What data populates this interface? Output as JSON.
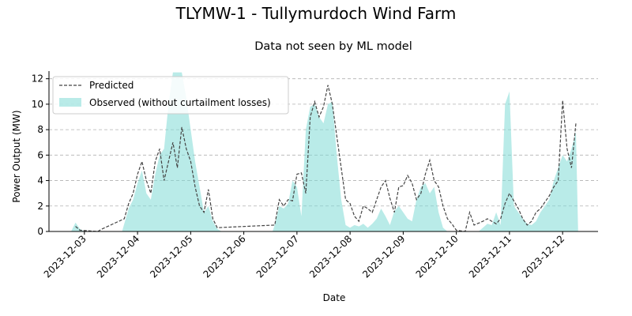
{
  "figure": {
    "suptitle": "TLYMW-1 - Tullymurdoch Wind Farm"
  },
  "chart_data": {
    "type": "area",
    "title": "Data not seen by ML model",
    "xlabel": "Date",
    "ylabel": "Power Output (MW)",
    "ylim": [
      0,
      12.6
    ],
    "xlim": [
      "2023-12-02 08:00",
      "2023-12-12 16:00"
    ],
    "yticks": [
      0,
      2,
      4,
      6,
      8,
      10,
      12
    ],
    "xticks": [
      "2023-12-03",
      "2023-12-04",
      "2023-12-05",
      "2023-12-06",
      "2023-12-07",
      "2023-12-08",
      "2023-12-09",
      "2023-12-10",
      "2023-12-11",
      "2023-12-12"
    ],
    "grid": "y-dashed",
    "legend_position": "upper-left",
    "series": [
      {
        "name": "Predicted",
        "style": "dashed-line",
        "color": "#444444",
        "points": [
          [
            "2023-12-02 20:00",
            0.4
          ],
          [
            "2023-12-02 22:00",
            0.1
          ],
          [
            "2023-12-03 06:00",
            0.0
          ],
          [
            "2023-12-03 08:00",
            0.2
          ],
          [
            "2023-12-03 18:00",
            1.0
          ],
          [
            "2023-12-03 20:00",
            2.2
          ],
          [
            "2023-12-03 22:00",
            3.0
          ],
          [
            "2023-12-04 00:00",
            4.5
          ],
          [
            "2023-12-04 02:00",
            5.5
          ],
          [
            "2023-12-04 04:00",
            4.0
          ],
          [
            "2023-12-04 06:00",
            3.0
          ],
          [
            "2023-12-04 08:00",
            5.5
          ],
          [
            "2023-12-04 10:00",
            6.5
          ],
          [
            "2023-12-04 12:00",
            4.0
          ],
          [
            "2023-12-04 14:00",
            5.5
          ],
          [
            "2023-12-04 16:00",
            7.0
          ],
          [
            "2023-12-04 18:00",
            5.0
          ],
          [
            "2023-12-04 20:00",
            8.2
          ],
          [
            "2023-12-04 22:00",
            6.5
          ],
          [
            "2023-12-05 00:00",
            5.5
          ],
          [
            "2023-12-05 02:00",
            3.5
          ],
          [
            "2023-12-05 04:00",
            2.0
          ],
          [
            "2023-12-05 06:00",
            1.5
          ],
          [
            "2023-12-05 08:00",
            3.3
          ],
          [
            "2023-12-05 10:00",
            1.0
          ],
          [
            "2023-12-05 12:00",
            0.3
          ],
          [
            "2023-12-06 14:00",
            0.5
          ],
          [
            "2023-12-06 16:00",
            2.5
          ],
          [
            "2023-12-06 18:00",
            2.0
          ],
          [
            "2023-12-06 20:00",
            2.5
          ],
          [
            "2023-12-06 22:00",
            2.4
          ],
          [
            "2023-12-07 00:00",
            4.5
          ],
          [
            "2023-12-07 02:00",
            4.6
          ],
          [
            "2023-12-07 04:00",
            3.0
          ],
          [
            "2023-12-07 06:00",
            9.0
          ],
          [
            "2023-12-07 08:00",
            10.2
          ],
          [
            "2023-12-07 10:00",
            9.0
          ],
          [
            "2023-12-07 12:00",
            9.8
          ],
          [
            "2023-12-07 14:00",
            11.5
          ],
          [
            "2023-12-07 16:00",
            10.0
          ],
          [
            "2023-12-07 18:00",
            7.5
          ],
          [
            "2023-12-07 20:00",
            5.0
          ],
          [
            "2023-12-07 22:00",
            2.5
          ],
          [
            "2023-12-08 00:00",
            2.2
          ],
          [
            "2023-12-08 02:00",
            1.2
          ],
          [
            "2023-12-08 04:00",
            0.8
          ],
          [
            "2023-12-08 06:00",
            2.0
          ],
          [
            "2023-12-08 08:00",
            1.8
          ],
          [
            "2023-12-08 10:00",
            1.5
          ],
          [
            "2023-12-08 12:00",
            2.5
          ],
          [
            "2023-12-08 14:00",
            3.5
          ],
          [
            "2023-12-08 16:00",
            4.0
          ],
          [
            "2023-12-08 18:00",
            2.6
          ],
          [
            "2023-12-08 20:00",
            1.5
          ],
          [
            "2023-12-08 22:00",
            3.5
          ],
          [
            "2023-12-09 00:00",
            3.6
          ],
          [
            "2023-12-09 02:00",
            4.4
          ],
          [
            "2023-12-09 04:00",
            3.8
          ],
          [
            "2023-12-09 06:00",
            2.5
          ],
          [
            "2023-12-09 08:00",
            3.0
          ],
          [
            "2023-12-09 10:00",
            4.5
          ],
          [
            "2023-12-09 12:00",
            5.6
          ],
          [
            "2023-12-09 14:00",
            4.0
          ],
          [
            "2023-12-09 16:00",
            3.5
          ],
          [
            "2023-12-09 18:00",
            2.0
          ],
          [
            "2023-12-09 20:00",
            1.0
          ],
          [
            "2023-12-09 22:00",
            0.6
          ],
          [
            "2023-12-10 00:00",
            0.1
          ],
          [
            "2023-12-10 04:00",
            0.0
          ],
          [
            "2023-12-10 06:00",
            1.5
          ],
          [
            "2023-12-10 08:00",
            0.5
          ],
          [
            "2023-12-10 12:00",
            0.8
          ],
          [
            "2023-12-10 14:00",
            1.0
          ],
          [
            "2023-12-10 16:00",
            0.8
          ],
          [
            "2023-12-10 18:00",
            0.6
          ],
          [
            "2023-12-10 20:00",
            1.0
          ],
          [
            "2023-12-10 22:00",
            2.2
          ],
          [
            "2023-12-11 00:00",
            3.0
          ],
          [
            "2023-12-11 02:00",
            2.4
          ],
          [
            "2023-12-11 04:00",
            1.8
          ],
          [
            "2023-12-11 06:00",
            1.0
          ],
          [
            "2023-12-11 08:00",
            0.5
          ],
          [
            "2023-12-11 10:00",
            0.8
          ],
          [
            "2023-12-11 12:00",
            1.5
          ],
          [
            "2023-12-11 14:00",
            1.8
          ],
          [
            "2023-12-11 16:00",
            2.3
          ],
          [
            "2023-12-11 18:00",
            2.8
          ],
          [
            "2023-12-11 20:00",
            3.5
          ],
          [
            "2023-12-11 22:00",
            4.0
          ],
          [
            "2023-12-12 00:00",
            10.3
          ],
          [
            "2023-12-12 02:00",
            6.5
          ],
          [
            "2023-12-12 04:00",
            5.0
          ],
          [
            "2023-12-12 06:00",
            8.5
          ]
        ]
      },
      {
        "name": "Observed (without curtailment losses)",
        "style": "filled-area",
        "color": "#7fdbd6",
        "points": [
          [
            "2023-12-02 18:00",
            0.0
          ],
          [
            "2023-12-02 20:00",
            0.7
          ],
          [
            "2023-12-02 22:00",
            0.2
          ],
          [
            "2023-12-03 00:00",
            0.0
          ],
          [
            "2023-12-03 17:00",
            0.0
          ],
          [
            "2023-12-03 18:00",
            0.6
          ],
          [
            "2023-12-03 20:00",
            1.8
          ],
          [
            "2023-12-03 22:00",
            2.5
          ],
          [
            "2023-12-04 00:00",
            3.8
          ],
          [
            "2023-12-04 02:00",
            4.8
          ],
          [
            "2023-12-04 04:00",
            3.0
          ],
          [
            "2023-12-04 06:00",
            2.5
          ],
          [
            "2023-12-04 08:00",
            4.5
          ],
          [
            "2023-12-04 10:00",
            6.0
          ],
          [
            "2023-12-04 12:00",
            6.5
          ],
          [
            "2023-12-04 14:00",
            10.0
          ],
          [
            "2023-12-04 16:00",
            12.5
          ],
          [
            "2023-12-04 18:00",
            12.5
          ],
          [
            "2023-12-04 20:00",
            12.5
          ],
          [
            "2023-12-04 22:00",
            10.5
          ],
          [
            "2023-12-05 00:00",
            8.0
          ],
          [
            "2023-12-05 02:00",
            5.5
          ],
          [
            "2023-12-05 04:00",
            3.5
          ],
          [
            "2023-12-05 06:00",
            1.5
          ],
          [
            "2023-12-05 08:00",
            2.0
          ],
          [
            "2023-12-05 10:00",
            0.8
          ],
          [
            "2023-12-05 12:00",
            0.2
          ],
          [
            "2023-12-05 14:00",
            0.0
          ],
          [
            "2023-12-06 13:00",
            0.0
          ],
          [
            "2023-12-06 14:00",
            0.5
          ],
          [
            "2023-12-06 16:00",
            2.0
          ],
          [
            "2023-12-06 18:00",
            1.8
          ],
          [
            "2023-12-06 20:00",
            2.2
          ],
          [
            "2023-12-06 22:00",
            4.0
          ],
          [
            "2023-12-07 00:00",
            3.5
          ],
          [
            "2023-12-07 02:00",
            1.2
          ],
          [
            "2023-12-07 04:00",
            8.0
          ],
          [
            "2023-12-07 06:00",
            9.8
          ],
          [
            "2023-12-07 08:00",
            10.0
          ],
          [
            "2023-12-07 10:00",
            9.0
          ],
          [
            "2023-12-07 12:00",
            8.5
          ],
          [
            "2023-12-07 14:00",
            10.0
          ],
          [
            "2023-12-07 16:00",
            10.2
          ],
          [
            "2023-12-07 18:00",
            6.0
          ],
          [
            "2023-12-07 20:00",
            2.5
          ],
          [
            "2023-12-07 22:00",
            0.5
          ],
          [
            "2023-12-08 00:00",
            0.3
          ],
          [
            "2023-12-08 02:00",
            0.5
          ],
          [
            "2023-12-08 04:00",
            0.4
          ],
          [
            "2023-12-08 06:00",
            0.6
          ],
          [
            "2023-12-08 08:00",
            0.3
          ],
          [
            "2023-12-08 10:00",
            0.6
          ],
          [
            "2023-12-08 12:00",
            1.0
          ],
          [
            "2023-12-08 14:00",
            1.8
          ],
          [
            "2023-12-08 16:00",
            1.2
          ],
          [
            "2023-12-08 18:00",
            0.5
          ],
          [
            "2023-12-08 20:00",
            1.6
          ],
          [
            "2023-12-08 22:00",
            2.0
          ],
          [
            "2023-12-09 00:00",
            1.5
          ],
          [
            "2023-12-09 02:00",
            1.0
          ],
          [
            "2023-12-09 04:00",
            0.8
          ],
          [
            "2023-12-09 06:00",
            2.5
          ],
          [
            "2023-12-09 08:00",
            3.5
          ],
          [
            "2023-12-09 10:00",
            3.8
          ],
          [
            "2023-12-09 12:00",
            3.0
          ],
          [
            "2023-12-09 14:00",
            3.5
          ],
          [
            "2023-12-09 16:00",
            1.5
          ],
          [
            "2023-12-09 18:00",
            0.3
          ],
          [
            "2023-12-09 20:00",
            0.0
          ],
          [
            "2023-12-10 10:00",
            0.0
          ],
          [
            "2023-12-10 12:00",
            0.3
          ],
          [
            "2023-12-10 14:00",
            0.6
          ],
          [
            "2023-12-10 16:00",
            0.5
          ],
          [
            "2023-12-10 18:00",
            1.5
          ],
          [
            "2023-12-10 20:00",
            0.5
          ],
          [
            "2023-12-10 22:00",
            10.0
          ],
          [
            "2023-12-11 00:00",
            11.0
          ],
          [
            "2023-12-11 02:00",
            2.0
          ],
          [
            "2023-12-11 04:00",
            1.5
          ],
          [
            "2023-12-11 06:00",
            1.0
          ],
          [
            "2023-12-11 08:00",
            0.6
          ],
          [
            "2023-12-11 10:00",
            0.5
          ],
          [
            "2023-12-11 12:00",
            0.8
          ],
          [
            "2023-12-11 14:00",
            1.5
          ],
          [
            "2023-12-11 16:00",
            2.0
          ],
          [
            "2023-12-11 18:00",
            2.5
          ],
          [
            "2023-12-11 20:00",
            4.0
          ],
          [
            "2023-12-11 22:00",
            5.0
          ],
          [
            "2023-12-12 00:00",
            6.0
          ],
          [
            "2023-12-12 02:00",
            5.5
          ],
          [
            "2023-12-12 04:00",
            6.5
          ],
          [
            "2023-12-12 06:00",
            7.8
          ],
          [
            "2023-12-12 07:00",
            0.0
          ]
        ]
      }
    ]
  }
}
